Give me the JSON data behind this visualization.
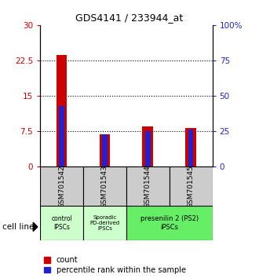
{
  "title": "GDS4141 / 233944_at",
  "samples": [
    "GSM701542",
    "GSM701543",
    "GSM701544",
    "GSM701545"
  ],
  "count_values": [
    23.7,
    6.9,
    8.5,
    8.2
  ],
  "percentile_values": [
    12.9,
    6.9,
    7.6,
    7.9
  ],
  "left_yticks": [
    0,
    7.5,
    15,
    22.5,
    30
  ],
  "left_yticklabels": [
    "0",
    "7.5",
    "15",
    "22.5",
    "30"
  ],
  "right_yticklabels": [
    "0",
    "25",
    "50",
    "75",
    "100%"
  ],
  "ylim_max": 30,
  "bar_color": "#cc0000",
  "percentile_color": "#2222cc",
  "cell_line_label": "cell line",
  "legend_count": "count",
  "legend_percentile": "percentile rank within the sample",
  "bar_width": 0.25,
  "percentile_bar_width": 0.12,
  "group1_label": "control\nIPSCs",
  "group2_label": "Sporadic\nPD-derived\niPSCs",
  "group3_label": "presenilin 2 (PS2)\niPSCs",
  "group1_color": "#ccffcc",
  "group2_color": "#ccffcc",
  "group3_color": "#66ee66",
  "sample_box_color": "#cccccc",
  "title_fontsize": 9,
  "tick_fontsize": 7.5,
  "label_fontsize": 6.5,
  "legend_fontsize": 7
}
